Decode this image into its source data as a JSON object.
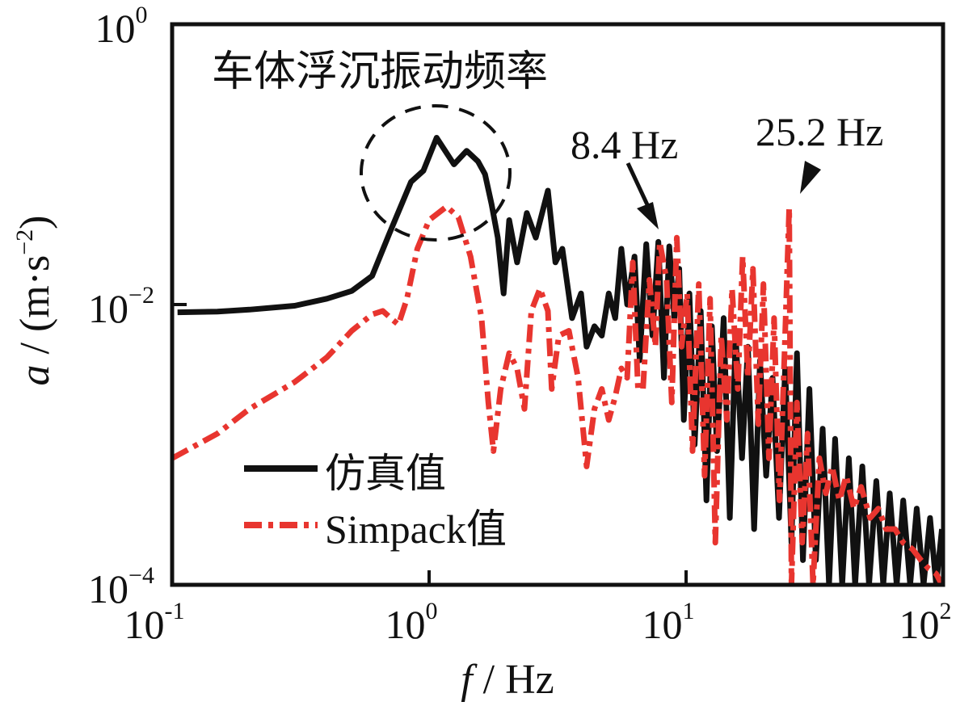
{
  "chart_data": {
    "type": "line",
    "title": "",
    "xlabel": "f / Hz",
    "xlabel_var": "f",
    "xlabel_unit": " / Hz",
    "ylabel_var": "a",
    "ylabel_unit": " / (m·s",
    "ylabel_exp": "−2",
    "ylabel_close": ")",
    "xscale": "log",
    "yscale": "log",
    "xlim": [
      0.1,
      100
    ],
    "ylim": [
      0.0001,
      1
    ],
    "grid": false,
    "x_ticks": [
      {
        "value": 0.1,
        "base": "10",
        "exp": "-1"
      },
      {
        "value": 1,
        "base": "10",
        "exp": "0"
      },
      {
        "value": 10,
        "base": "10",
        "exp": "1"
      },
      {
        "value": 100,
        "base": "10",
        "exp": "2"
      }
    ],
    "y_ticks": [
      {
        "value": 1,
        "base": "10",
        "exp": "0"
      },
      {
        "value": 0.01,
        "base": "10",
        "exp": "−2"
      },
      {
        "value": 0.0001,
        "base": "10",
        "exp": "−4"
      }
    ],
    "legend_position": "bottom-left",
    "annotations": [
      {
        "text": "车体浮沉振动频率",
        "kind": "label",
        "target_x": 1.07,
        "target_y": 0.1
      },
      {
        "text": "8.4 Hz",
        "kind": "arrow",
        "target_x": 8.4,
        "target_y": 0.03
      },
      {
        "text": "25.2 Hz",
        "kind": "arrow",
        "target_x": 25.2,
        "target_y": 0.06
      }
    ],
    "highlight_ellipse": {
      "center_x": 1.1,
      "center_y": 0.1,
      "note": "dashed circle around body bounce peak"
    },
    "series": [
      {
        "name": "仿真值",
        "color": "#111111",
        "style": "solid",
        "points": [
          [
            0.105,
            0.0088
          ],
          [
            0.15,
            0.0089
          ],
          [
            0.2,
            0.0092
          ],
          [
            0.3,
            0.0098
          ],
          [
            0.4,
            0.011
          ],
          [
            0.5,
            0.0125
          ],
          [
            0.6,
            0.016
          ],
          [
            0.7,
            0.032
          ],
          [
            0.85,
            0.075
          ],
          [
            0.95,
            0.09
          ],
          [
            1.07,
            0.155
          ],
          [
            1.25,
            0.1
          ],
          [
            1.4,
            0.125
          ],
          [
            1.55,
            0.105
          ],
          [
            1.65,
            0.085
          ],
          [
            1.75,
            0.052
          ],
          [
            1.85,
            0.03
          ],
          [
            1.95,
            0.012
          ],
          [
            2.05,
            0.04
          ],
          [
            2.2,
            0.02
          ],
          [
            2.4,
            0.045
          ],
          [
            2.6,
            0.03
          ],
          [
            2.9,
            0.065
          ],
          [
            3.1,
            0.02
          ],
          [
            3.3,
            0.025
          ],
          [
            3.6,
            0.008
          ],
          [
            3.9,
            0.012
          ],
          [
            4.1,
            0.005
          ],
          [
            4.4,
            0.007
          ],
          [
            4.7,
            0.006
          ],
          [
            5.0,
            0.012
          ],
          [
            5.3,
            0.008
          ],
          [
            5.6,
            0.025
          ],
          [
            5.9,
            0.01
          ],
          [
            6.3,
            0.022
          ],
          [
            6.6,
            0.004
          ],
          [
            7.0,
            0.027
          ],
          [
            7.4,
            0.006
          ],
          [
            7.8,
            0.028
          ],
          [
            8.2,
            0.003
          ],
          [
            8.6,
            0.026
          ],
          [
            9.0,
            0.008
          ],
          [
            9.4,
            0.018
          ],
          [
            9.8,
            0.0015
          ],
          [
            10.3,
            0.012
          ],
          [
            10.8,
            0.001
          ],
          [
            11.4,
            0.009
          ],
          [
            12.0,
            0.0004
          ],
          [
            12.6,
            0.007
          ],
          [
            13.2,
            0.0009
          ],
          [
            14.0,
            0.008
          ],
          [
            14.8,
            0.0003
          ],
          [
            15.6,
            0.006
          ],
          [
            16.5,
            0.0008
          ],
          [
            17.4,
            0.005
          ],
          [
            18.4,
            0.00025
          ],
          [
            19.4,
            0.004
          ],
          [
            20.5,
            0.0006
          ],
          [
            21.7,
            0.003
          ],
          [
            23.0,
            0.0003
          ],
          [
            24.3,
            0.0035
          ],
          [
            25.7,
            0.0002
          ],
          [
            27.0,
            0.0045
          ],
          [
            28.5,
            0.00015
          ],
          [
            30.2,
            0.0025
          ],
          [
            32.0,
            0.00015
          ],
          [
            34.0,
            0.0013
          ],
          [
            36.0,
            0.0001
          ],
          [
            38.0,
            0.0011
          ],
          [
            40.5,
            0.0001
          ],
          [
            43.0,
            0.0008
          ],
          [
            45.5,
            0.0001
          ],
          [
            48.5,
            0.0007
          ],
          [
            51.5,
            0.0001
          ],
          [
            55.0,
            0.00055
          ],
          [
            58.5,
            0.0001
          ],
          [
            62.0,
            0.00045
          ],
          [
            66.0,
            0.0001
          ],
          [
            70.0,
            0.0004
          ],
          [
            74.5,
            0.0001
          ],
          [
            79.0,
            0.00035
          ],
          [
            84.0,
            0.0001
          ],
          [
            89.0,
            0.0003
          ],
          [
            94.0,
            0.0001
          ],
          [
            99.0,
            0.00025
          ]
        ]
      },
      {
        "name": "Simpack值",
        "color": "#e8352f",
        "style": "dashdot",
        "points": [
          [
            0.1,
            0.0008
          ],
          [
            0.15,
            0.0012
          ],
          [
            0.2,
            0.0018
          ],
          [
            0.3,
            0.0028
          ],
          [
            0.4,
            0.0042
          ],
          [
            0.5,
            0.0065
          ],
          [
            0.6,
            0.0085
          ],
          [
            0.66,
            0.009
          ],
          [
            0.72,
            0.0078
          ],
          [
            0.76,
            0.0072
          ],
          [
            0.82,
            0.011
          ],
          [
            0.9,
            0.025
          ],
          [
            1.0,
            0.04
          ],
          [
            1.17,
            0.05
          ],
          [
            1.3,
            0.042
          ],
          [
            1.45,
            0.022
          ],
          [
            1.6,
            0.008
          ],
          [
            1.7,
            0.002
          ],
          [
            1.78,
            0.0009
          ],
          [
            1.9,
            0.0025
          ],
          [
            2.05,
            0.0045
          ],
          [
            2.2,
            0.0035
          ],
          [
            2.35,
            0.0018
          ],
          [
            2.5,
            0.009
          ],
          [
            2.7,
            0.013
          ],
          [
            2.9,
            0.009
          ],
          [
            3.0,
            0.0025
          ],
          [
            3.2,
            0.006
          ],
          [
            3.5,
            0.0065
          ],
          [
            3.8,
            0.003
          ],
          [
            4.1,
            0.0007
          ],
          [
            4.4,
            0.0018
          ],
          [
            4.7,
            0.0025
          ],
          [
            5.0,
            0.0015
          ],
          [
            5.3,
            0.0022
          ],
          [
            5.6,
            0.0035
          ],
          [
            5.9,
            0.003
          ],
          [
            6.2,
            0.02
          ],
          [
            6.5,
            0.0025
          ],
          [
            6.8,
            0.0025
          ],
          [
            7.2,
            0.015
          ],
          [
            7.6,
            0.005
          ],
          [
            7.9,
            0.028
          ],
          [
            8.4,
            0.015
          ],
          [
            8.8,
            0.002
          ],
          [
            9.2,
            0.03
          ],
          [
            9.6,
            0.005
          ],
          [
            10.1,
            0.012
          ],
          [
            10.6,
            0.0009
          ],
          [
            11.2,
            0.014
          ],
          [
            11.8,
            0.0006
          ],
          [
            12.4,
            0.011
          ],
          [
            13.0,
            0.0002
          ],
          [
            13.7,
            0.006
          ],
          [
            14.4,
            0.0015
          ],
          [
            15.1,
            0.013
          ],
          [
            15.9,
            0.0025
          ],
          [
            16.6,
            0.022
          ],
          [
            17.4,
            0.003
          ],
          [
            18.2,
            0.018
          ],
          [
            19.1,
            0.0014
          ],
          [
            20.0,
            0.014
          ],
          [
            21.0,
            0.0008
          ],
          [
            22.0,
            0.008
          ],
          [
            23.1,
            0.0004
          ],
          [
            24.2,
            0.005
          ],
          [
            25.2,
            0.049
          ],
          [
            25.7,
            0.0001
          ],
          [
            27.0,
            0.002
          ],
          [
            28.3,
            0.0002
          ],
          [
            29.7,
            0.0012
          ],
          [
            31.2,
            0.0001
          ],
          [
            33.0,
            0.0008
          ],
          [
            35.0,
            0.00045
          ],
          [
            37.0,
            0.0007
          ],
          [
            39.5,
            0.0004
          ],
          [
            42.0,
            0.0006
          ],
          [
            45.0,
            0.00035
          ],
          [
            48.0,
            0.0005
          ],
          [
            52.0,
            0.0003
          ],
          [
            56.0,
            0.00035
          ],
          [
            60.0,
            0.00025
          ],
          [
            65.0,
            0.00025
          ],
          [
            70.0,
            0.0002
          ],
          [
            76.0,
            0.00018
          ],
          [
            82.0,
            0.00015
          ],
          [
            88.0,
            0.00013
          ],
          [
            94.0,
            0.00012
          ],
          [
            99.0,
            0.0001
          ]
        ]
      }
    ]
  }
}
